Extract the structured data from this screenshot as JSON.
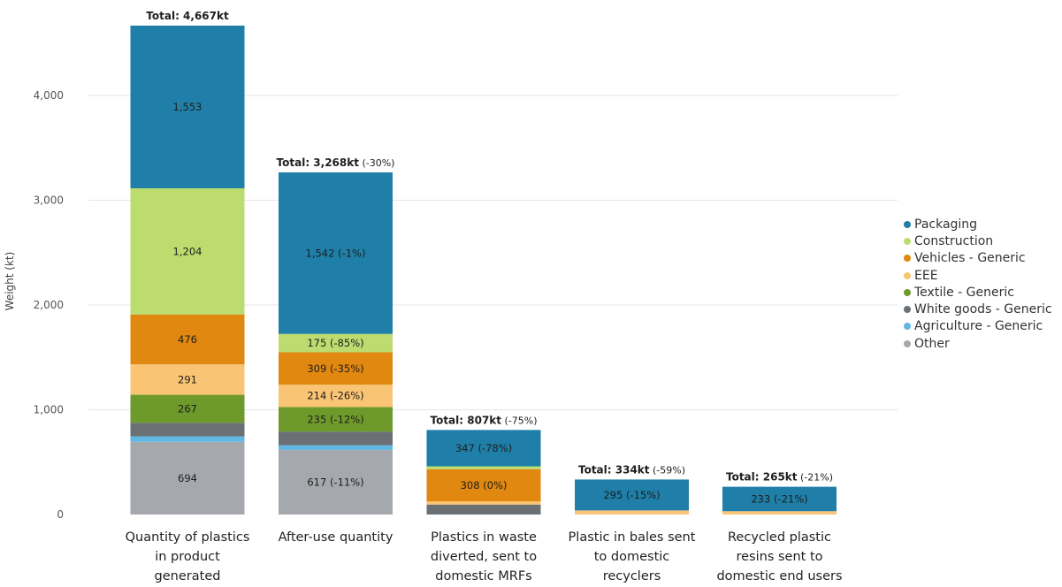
{
  "chart_data": {
    "type": "bar",
    "stacked": true,
    "ylabel": "Weight (kt)",
    "ylim": [
      0,
      4700
    ],
    "yticks": [
      {
        "value": 0,
        "label": "0"
      },
      {
        "value": 1000,
        "label": "1,000"
      },
      {
        "value": 2000,
        "label": "2,000"
      },
      {
        "value": 3000,
        "label": "3,000"
      },
      {
        "value": 4000,
        "label": "4,000"
      }
    ],
    "grid": true,
    "legend_position": "right",
    "categories": [
      [
        "Quantity of plastics",
        "in product",
        "generated"
      ],
      [
        "After-use quantity"
      ],
      [
        "Plastics in waste",
        "diverted, sent to",
        "domestic MRFs"
      ],
      [
        "Plastic in bales sent",
        "to domestic",
        "recyclers"
      ],
      [
        "Recycled plastic",
        "resins sent to",
        "domestic end users"
      ]
    ],
    "totals": [
      {
        "prefix": "Total: ",
        "value": "4,667",
        "unit": "kt",
        "change": ""
      },
      {
        "prefix": "Total: ",
        "value": "3,268",
        "unit": "kt",
        "change": "(-30%)"
      },
      {
        "prefix": "Total: ",
        "value": "807",
        "unit": "kt",
        "change": "(-75%)"
      },
      {
        "prefix": "Total: ",
        "value": "334",
        "unit": "kt",
        "change": "(-59%)"
      },
      {
        "prefix": "Total: ",
        "value": "265",
        "unit": "kt",
        "change": "(-21%)"
      }
    ],
    "series": [
      {
        "name": "Other",
        "color": "#a5a9ad",
        "values": [
          694,
          617,
          0,
          0,
          0
        ],
        "labels": [
          "694",
          "617 (-11%)",
          "",
          "",
          ""
        ]
      },
      {
        "name": "Agriculture - Generic",
        "color": "#5fb7e3",
        "values": [
          52,
          44,
          0,
          0,
          0
        ],
        "labels": [
          "",
          "",
          "",
          "",
          ""
        ]
      },
      {
        "name": "White goods - Generic",
        "color": "#6b7075",
        "values": [
          130,
          130,
          95,
          0,
          0
        ],
        "labels": [
          "",
          "",
          "",
          "",
          ""
        ]
      },
      {
        "name": "Textile - Generic",
        "color": "#6e9a2b",
        "values": [
          267,
          235,
          0,
          0,
          0
        ],
        "labels": [
          "267",
          "235 (-12%)",
          "",
          "",
          ""
        ]
      },
      {
        "name": "EEE",
        "color": "#f9c473",
        "values": [
          291,
          214,
          30,
          39,
          32
        ],
        "labels": [
          "291",
          "214 (-26%)",
          "",
          "",
          ""
        ]
      },
      {
        "name": "Vehicles - Generic",
        "color": "#e0880f",
        "values": [
          476,
          309,
          308,
          0,
          0
        ],
        "labels": [
          "476",
          "309 (-35%)",
          "308 (0%)",
          "",
          ""
        ]
      },
      {
        "name": "Construction",
        "color": "#bcdc6f",
        "values": [
          1204,
          175,
          27,
          0,
          0
        ],
        "labels": [
          "1,204",
          "175 (-85%)",
          "",
          "",
          ""
        ]
      },
      {
        "name": "Packaging",
        "color": "#1f7fa8",
        "values": [
          1553,
          1542,
          347,
          295,
          233
        ],
        "labels": [
          "1,553",
          "1,542 (-1%)",
          "347 (-78%)",
          "295 (-15%)",
          "233 (-21%)"
        ]
      }
    ],
    "legend_order": [
      "Packaging",
      "Construction",
      "Vehicles - Generic",
      "EEE",
      "Textile - Generic",
      "White goods - Generic",
      "Agriculture - Generic",
      "Other"
    ]
  }
}
